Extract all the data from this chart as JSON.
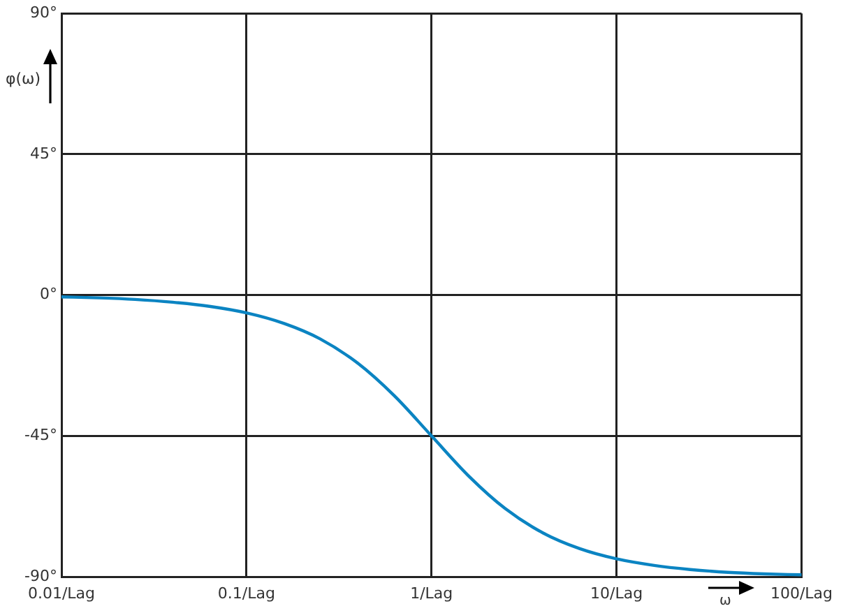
{
  "chart_data": {
    "type": "line",
    "xlabel": "ω",
    "ylabel": "φ(ω)",
    "x": [
      0.01,
      0.016,
      0.025,
      0.04,
      0.063,
      0.1,
      0.16,
      0.25,
      0.4,
      0.63,
      1,
      1.6,
      2.5,
      4,
      6.3,
      10,
      16,
      25,
      40,
      63,
      100
    ],
    "series": [
      {
        "color": "#0b84c2",
        "values": [
          -0.6,
          -0.9,
          -1.4,
          -2.3,
          -3.6,
          -5.7,
          -9.1,
          -14,
          -21.8,
          -32.2,
          -45,
          -58,
          -68.2,
          -76,
          -81,
          -84.3,
          -86.4,
          -87.7,
          -88.6,
          -89.1,
          -89.4
        ]
      }
    ],
    "log": "x",
    "xlim": [
      0.01,
      100
    ],
    "ylim": [
      -90,
      90
    ],
    "xticks": [
      {
        "value": 0.01,
        "label": "0.01/Lag"
      },
      {
        "value": 0.1,
        "label": "0.1/Lag"
      },
      {
        "value": 1,
        "label": "1/Lag"
      },
      {
        "value": 10,
        "label": "10/Lag"
      },
      {
        "value": 100,
        "label": "100/Lag"
      }
    ],
    "yticks": [
      {
        "value": -90,
        "label": "-90°"
      },
      {
        "value": -45,
        "label": "-45°"
      },
      {
        "value": 0,
        "label": "0°"
      },
      {
        "value": 45,
        "label": "45°"
      },
      {
        "value": 90,
        "label": "90°"
      }
    ],
    "grid": true,
    "marker": "none",
    "line_style": "solid"
  }
}
